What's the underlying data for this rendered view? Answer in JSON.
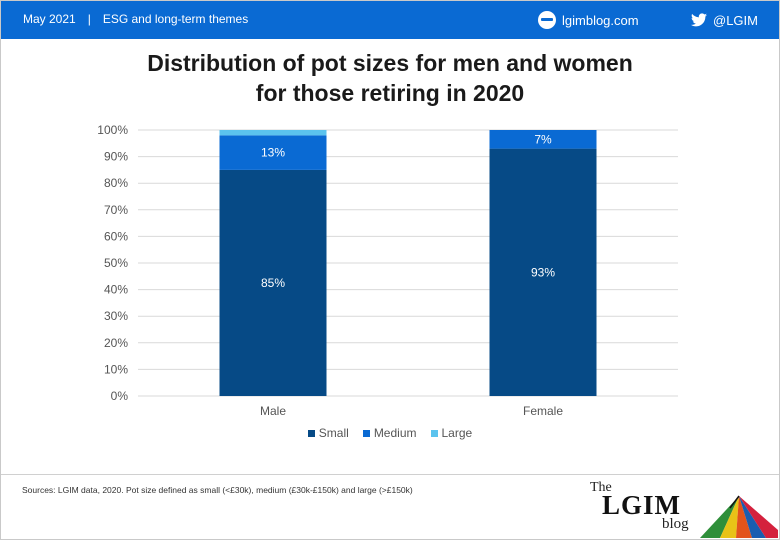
{
  "header": {
    "date": "May 2021",
    "section": "ESG and long-term themes",
    "site": "lgimblog.com",
    "twitter": "@LGIM"
  },
  "title_lines": [
    "Distribution of pot sizes for men and women",
    "for those retiring in 2020"
  ],
  "chart_data": {
    "type": "bar",
    "stacked": true,
    "categories": [
      "Male",
      "Female"
    ],
    "series": [
      {
        "name": "Small",
        "values": [
          85,
          93
        ],
        "color": "#064a86",
        "labels": [
          "85%",
          "93%"
        ]
      },
      {
        "name": "Medium",
        "values": [
          13,
          7
        ],
        "color": "#0a6ad3",
        "labels": [
          "13%",
          "7%"
        ]
      },
      {
        "name": "Large",
        "values": [
          2,
          0
        ],
        "color": "#5bc3ee",
        "labels": [
          "",
          ""
        ]
      }
    ],
    "ylim": [
      0,
      100
    ],
    "yticks": [
      "0%",
      "10%",
      "20%",
      "30%",
      "40%",
      "50%",
      "60%",
      "70%",
      "80%",
      "90%",
      "100%"
    ],
    "grid": true,
    "legend": "bottom"
  },
  "footer": {
    "source": "Sources: LGIM data, 2020. Pot size defined as small (<£30k), medium (£30k-£150k) and large (>£150k)"
  },
  "logo": {
    "the": "The",
    "name": "LGIM",
    "blog": "blog"
  },
  "icons": {
    "site": "globe-icon",
    "twitter": "twitter-bird-icon"
  }
}
